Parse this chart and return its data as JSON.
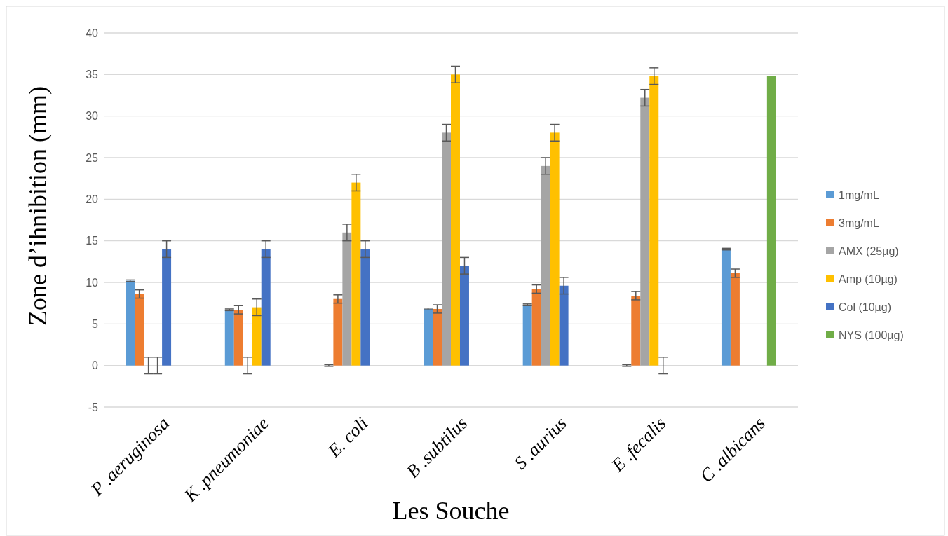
{
  "chart_data": {
    "type": "bar",
    "xlabel": "Les Souche",
    "ylabel": "Zone d’ihnibition (mm)",
    "categories": [
      "P .aeruginosa",
      "K .pneumoniae",
      "E. coli",
      "B .subtilus",
      "S .aurius",
      "E .fecalis",
      "C .albicans"
    ],
    "series": [
      {
        "name": "1mg/mL",
        "color": "#5b9bd5",
        "values": [
          10.2,
          6.7,
          0,
          6.8,
          7.3,
          0,
          14
        ],
        "errors": [
          0.1,
          0.1,
          0.1,
          0.1,
          0.1,
          0.1,
          0.1
        ]
      },
      {
        "name": "3mg/mL",
        "color": "#ed7d31",
        "values": [
          8.6,
          6.7,
          8,
          6.8,
          9.2,
          8.4,
          11.1
        ],
        "errors": [
          0.5,
          0.5,
          0.5,
          0.5,
          0.5,
          0.5,
          0.5
        ]
      },
      {
        "name": "AMX (25µg)",
        "color": "#a5a5a5",
        "values": [
          0,
          0,
          16,
          28,
          24,
          32.2,
          null
        ],
        "errors": [
          1,
          1,
          1,
          1,
          1,
          1,
          null
        ]
      },
      {
        "name": "Amp (10µg)",
        "color": "#ffc000",
        "values": [
          0,
          7,
          22,
          35,
          28,
          34.8,
          null
        ],
        "errors": [
          1,
          1,
          1,
          1,
          1,
          1,
          null
        ]
      },
      {
        "name": "Col (10µg)",
        "color": "#4472c4",
        "values": [
          14,
          14,
          14,
          12,
          9.6,
          0,
          null
        ],
        "errors": [
          1,
          1,
          1,
          1,
          1,
          1,
          null
        ]
      },
      {
        "name": "NYS (100µg)",
        "color": "#70ad47",
        "values": [
          null,
          null,
          null,
          null,
          null,
          null,
          34.8
        ]
      }
    ],
    "ylim": [
      -5,
      40
    ],
    "yticks": [
      -5,
      0,
      5,
      10,
      15,
      20,
      25,
      30,
      35,
      40
    ],
    "grid": "y",
    "legend": "right"
  }
}
